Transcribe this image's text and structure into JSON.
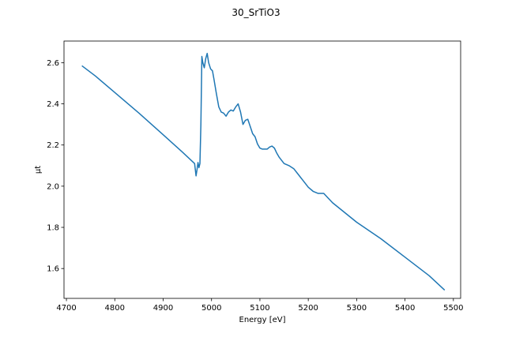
{
  "chart_data": {
    "type": "line",
    "title": "30_SrTiO3",
    "xlabel": "Energy [eV]",
    "ylabel": "μt",
    "xlim": [
      4695,
      5515
    ],
    "ylim": [
      1.455,
      2.705
    ],
    "x_ticks": [
      4700,
      4800,
      4900,
      5000,
      5100,
      5200,
      5300,
      5400,
      5500
    ],
    "y_ticks": [
      1.6,
      1.8,
      2.0,
      2.2,
      2.4,
      2.6
    ],
    "grid": false,
    "legend": "none",
    "series": [
      {
        "color": "#1f77b4",
        "x": [
          4732,
          4760,
          4800,
          4850,
          4900,
          4940,
          4965,
          4968,
          4970,
          4972,
          4974,
          4976,
          4978,
          4980,
          4982,
          4985,
          4988,
          4991,
          4994,
          4998,
          5002,
          5005,
          5010,
          5015,
          5020,
          5025,
          5030,
          5035,
          5040,
          5045,
          5050,
          5055,
          5060,
          5065,
          5070,
          5075,
          5080,
          5085,
          5090,
          5095,
          5100,
          5105,
          5110,
          5115,
          5120,
          5125,
          5130,
          5135,
          5140,
          5150,
          5160,
          5170,
          5180,
          5190,
          5200,
          5210,
          5220,
          5232,
          5240,
          5250,
          5300,
          5350,
          5400,
          5450,
          5482
        ],
        "y": [
          2.585,
          2.535,
          2.455,
          2.355,
          2.25,
          2.165,
          2.11,
          2.05,
          2.08,
          2.115,
          2.09,
          2.11,
          2.3,
          2.63,
          2.6,
          2.575,
          2.62,
          2.645,
          2.6,
          2.57,
          2.56,
          2.52,
          2.45,
          2.385,
          2.36,
          2.355,
          2.34,
          2.36,
          2.37,
          2.365,
          2.385,
          2.4,
          2.36,
          2.3,
          2.32,
          2.325,
          2.29,
          2.255,
          2.24,
          2.205,
          2.185,
          2.18,
          2.18,
          2.18,
          2.19,
          2.195,
          2.185,
          2.16,
          2.14,
          2.11,
          2.1,
          2.085,
          2.055,
          2.025,
          1.995,
          1.975,
          1.965,
          1.965,
          1.945,
          1.92,
          1.825,
          1.745,
          1.655,
          1.565,
          1.495
        ]
      }
    ]
  }
}
